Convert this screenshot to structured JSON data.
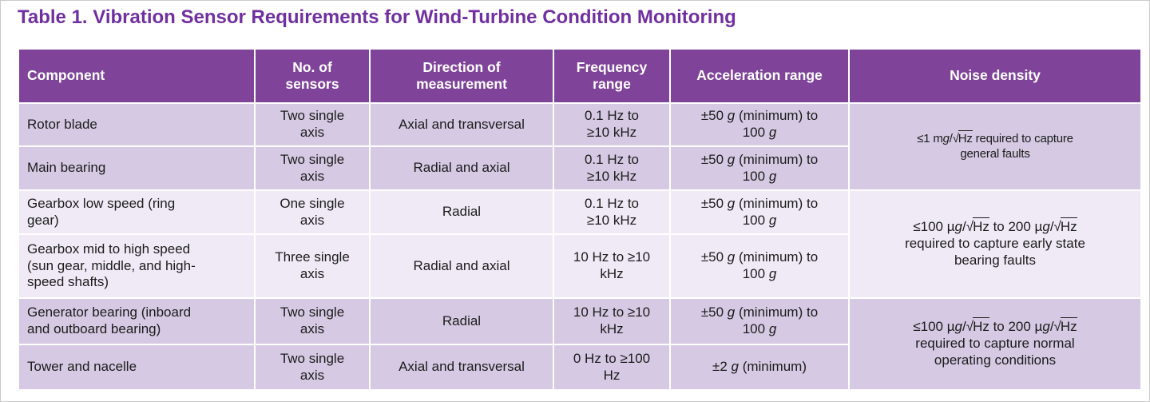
{
  "title": "Table 1. Vibration Sensor Requirements for Wind-Turbine Condition Monitoring",
  "colors": {
    "title_text": "#7030A0",
    "header_bg": "#7F4499",
    "header_text": "#FFFFFF",
    "row_band_dark": "#D5C9E3",
    "row_band_light": "#EFEAF6",
    "body_text": "#1C1C1C",
    "grid_lines": "#FFFFFF"
  },
  "table": {
    "headers": [
      "Component",
      "No. of\nsensors",
      "Direction of\nmeasurement",
      "Frequency\nrange",
      "Acceleration range",
      "Noise density"
    ],
    "rows": [
      {
        "component": "Rotor blade",
        "sensors": "Two single\naxis",
        "direction": "Axial and transversal",
        "frequency": "0.1 Hz to\n≥10 kHz",
        "acceleration": "±50 g (minimum) to\n100 g",
        "noise": {
          "text": "≤1 mg/√Hz required to capture\ngeneral faults",
          "rowspan": 2,
          "small": true
        },
        "band": "dark"
      },
      {
        "component": "Main bearing",
        "sensors": "Two single\naxis",
        "direction": "Radial and axial",
        "frequency": "0.1 Hz to\n≥10 kHz",
        "acceleration": "±50 g (minimum) to\n100 g",
        "band": "dark"
      },
      {
        "component": "Gearbox low speed (ring\ngear)",
        "sensors": "One single\naxis",
        "direction": "Radial",
        "frequency": "0.1 Hz to\n≥10 kHz",
        "acceleration": "±50 g (minimum) to\n100 g",
        "noise": {
          "text": "≤100 µg/√Hz to 200 µg/√Hz\nrequired to capture early state\nbearing faults",
          "rowspan": 2,
          "small": false
        },
        "band": "light"
      },
      {
        "component": "Gearbox mid to high speed\n(sun gear, middle, and high-\nspeed shafts)",
        "sensors": "Three single\naxis",
        "direction": "Radial and axial",
        "frequency": "10 Hz to ≥10\nkHz",
        "acceleration": "±50 g (minimum) to\n100 g",
        "band": "light"
      },
      {
        "component": "Generator bearing (inboard\nand outboard bearing)",
        "sensors": "Two single\naxis",
        "direction": "Radial",
        "frequency": "10 Hz to ≥10\nkHz",
        "acceleration": "±50 g (minimum) to\n100 g",
        "noise": {
          "text": "≤100 µg/√Hz to 200 µg/√Hz\nrequired to capture normal\noperating conditions",
          "rowspan": 2,
          "small": false
        },
        "band": "dark"
      },
      {
        "component": "Tower and nacelle",
        "sensors": "Two single\naxis",
        "direction": "Axial and transversal",
        "frequency": "0 Hz to ≥100\nHz",
        "acceleration": "±2 g (minimum)",
        "band": "dark"
      }
    ]
  }
}
